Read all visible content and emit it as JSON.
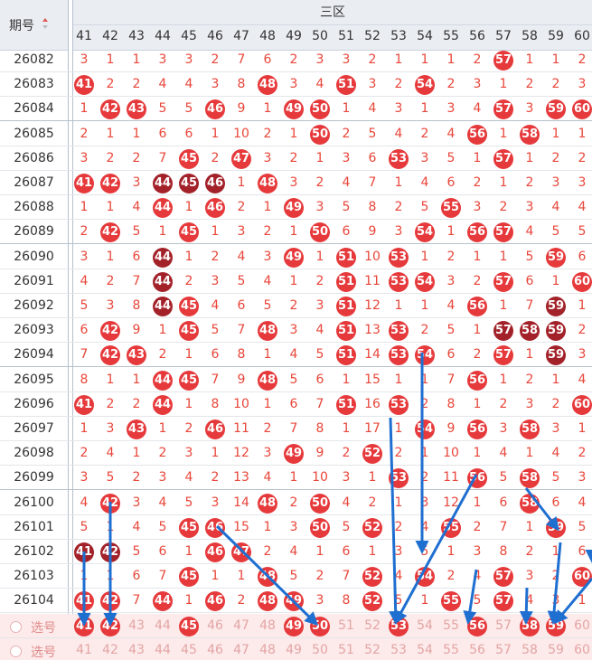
{
  "header": {
    "issue_label": "期号",
    "zone_label": "三区"
  },
  "columns": [
    "41",
    "42",
    "43",
    "44",
    "45",
    "46",
    "47",
    "48",
    "49",
    "50",
    "51",
    "52",
    "53",
    "54",
    "55",
    "56",
    "57",
    "58",
    "59",
    "60"
  ],
  "rows": [
    {
      "issue": "26082",
      "cells": [
        "3",
        "1",
        "1",
        "3",
        "3",
        "2",
        "7",
        "6",
        "2",
        "3",
        "3",
        "2",
        "1",
        "1",
        "1",
        "2",
        "57",
        "1",
        "1",
        "2"
      ],
      "balls": [
        16
      ],
      "dark": [],
      "group_end": false
    },
    {
      "issue": "26083",
      "cells": [
        "41",
        "2",
        "2",
        "4",
        "4",
        "3",
        "8",
        "48",
        "3",
        "4",
        "51",
        "3",
        "2",
        "54",
        "2",
        "3",
        "1",
        "2",
        "2",
        "3"
      ],
      "balls": [
        0,
        7,
        10,
        13
      ],
      "dark": [],
      "group_end": false
    },
    {
      "issue": "26084",
      "cells": [
        "1",
        "42",
        "43",
        "5",
        "5",
        "46",
        "9",
        "1",
        "49",
        "50",
        "1",
        "4",
        "3",
        "1",
        "3",
        "4",
        "57",
        "3",
        "59",
        "60"
      ],
      "balls": [
        1,
        2,
        5,
        8,
        9,
        16,
        18,
        19
      ],
      "dark": [],
      "group_end": true
    },
    {
      "issue": "26085",
      "cells": [
        "2",
        "1",
        "1",
        "6",
        "6",
        "1",
        "10",
        "2",
        "1",
        "50",
        "2",
        "5",
        "4",
        "2",
        "4",
        "56",
        "1",
        "58",
        "1",
        "1"
      ],
      "balls": [
        9,
        15,
        17
      ],
      "dark": [],
      "group_end": false
    },
    {
      "issue": "26086",
      "cells": [
        "3",
        "2",
        "2",
        "7",
        "45",
        "2",
        "47",
        "3",
        "2",
        "1",
        "3",
        "6",
        "53",
        "3",
        "5",
        "1",
        "57",
        "1",
        "2",
        "2"
      ],
      "balls": [
        4,
        6,
        12,
        16
      ],
      "dark": [],
      "group_end": false
    },
    {
      "issue": "26087",
      "cells": [
        "41",
        "42",
        "3",
        "44",
        "45",
        "46",
        "1",
        "48",
        "3",
        "2",
        "4",
        "7",
        "1",
        "4",
        "6",
        "2",
        "1",
        "2",
        "3",
        "3"
      ],
      "balls": [
        0,
        1,
        3,
        4,
        5,
        7
      ],
      "dark": [
        3,
        4,
        5
      ],
      "group_end": false
    },
    {
      "issue": "26088",
      "cells": [
        "1",
        "1",
        "4",
        "44",
        "1",
        "46",
        "2",
        "1",
        "49",
        "3",
        "5",
        "8",
        "2",
        "5",
        "55",
        "3",
        "2",
        "3",
        "4",
        "4"
      ],
      "balls": [
        3,
        5,
        8,
        14
      ],
      "dark": [],
      "group_end": false
    },
    {
      "issue": "26089",
      "cells": [
        "2",
        "42",
        "5",
        "1",
        "45",
        "1",
        "3",
        "2",
        "1",
        "50",
        "6",
        "9",
        "3",
        "54",
        "1",
        "56",
        "57",
        "4",
        "5",
        "5"
      ],
      "balls": [
        1,
        4,
        9,
        13,
        15,
        16
      ],
      "dark": [],
      "group_end": true
    },
    {
      "issue": "26090",
      "cells": [
        "3",
        "1",
        "6",
        "44",
        "1",
        "2",
        "4",
        "3",
        "49",
        "1",
        "51",
        "10",
        "53",
        "1",
        "2",
        "1",
        "1",
        "5",
        "59",
        "6"
      ],
      "balls": [
        3,
        8,
        10,
        12,
        18
      ],
      "dark": [
        3
      ],
      "group_end": false
    },
    {
      "issue": "26091",
      "cells": [
        "4",
        "2",
        "7",
        "44",
        "2",
        "3",
        "5",
        "4",
        "1",
        "2",
        "51",
        "11",
        "53",
        "54",
        "3",
        "2",
        "57",
        "6",
        "1",
        "60"
      ],
      "balls": [
        3,
        10,
        12,
        13,
        16,
        19
      ],
      "dark": [
        3
      ],
      "group_end": false
    },
    {
      "issue": "26092",
      "cells": [
        "5",
        "3",
        "8",
        "44",
        "45",
        "4",
        "6",
        "5",
        "2",
        "3",
        "51",
        "12",
        "1",
        "1",
        "4",
        "56",
        "1",
        "7",
        "59",
        "1"
      ],
      "balls": [
        3,
        4,
        10,
        15,
        18
      ],
      "dark": [
        3,
        18
      ],
      "group_end": false
    },
    {
      "issue": "26093",
      "cells": [
        "6",
        "42",
        "9",
        "1",
        "45",
        "5",
        "7",
        "48",
        "3",
        "4",
        "51",
        "13",
        "53",
        "2",
        "5",
        "1",
        "57",
        "58",
        "59",
        "2"
      ],
      "balls": [
        1,
        4,
        7,
        10,
        12,
        16,
        17,
        18
      ],
      "dark": [
        16,
        17,
        18
      ],
      "group_end": false
    },
    {
      "issue": "26094",
      "cells": [
        "7",
        "42",
        "43",
        "2",
        "1",
        "6",
        "8",
        "1",
        "4",
        "5",
        "51",
        "14",
        "53",
        "54",
        "6",
        "2",
        "57",
        "1",
        "59",
        "3"
      ],
      "balls": [
        1,
        2,
        10,
        12,
        13,
        16,
        18
      ],
      "dark": [
        18
      ],
      "group_end": true
    },
    {
      "issue": "26095",
      "cells": [
        "8",
        "1",
        "1",
        "44",
        "45",
        "7",
        "9",
        "48",
        "5",
        "6",
        "1",
        "15",
        "1",
        "1",
        "7",
        "56",
        "1",
        "2",
        "1",
        "4"
      ],
      "balls": [
        3,
        4,
        7,
        15
      ],
      "dark": [],
      "group_end": false
    },
    {
      "issue": "26096",
      "cells": [
        "41",
        "2",
        "2",
        "44",
        "1",
        "8",
        "10",
        "1",
        "6",
        "7",
        "51",
        "16",
        "53",
        "2",
        "8",
        "1",
        "2",
        "3",
        "2",
        "60"
      ],
      "balls": [
        0,
        3,
        10,
        12,
        19
      ],
      "dark": [],
      "group_end": false
    },
    {
      "issue": "26097",
      "cells": [
        "1",
        "3",
        "43",
        "1",
        "2",
        "46",
        "11",
        "2",
        "7",
        "8",
        "1",
        "17",
        "1",
        "54",
        "9",
        "56",
        "3",
        "58",
        "3",
        "1"
      ],
      "balls": [
        2,
        5,
        13,
        15,
        17
      ],
      "dark": [],
      "group_end": false
    },
    {
      "issue": "26098",
      "cells": [
        "2",
        "4",
        "1",
        "2",
        "3",
        "1",
        "12",
        "3",
        "49",
        "9",
        "2",
        "52",
        "2",
        "1",
        "10",
        "1",
        "4",
        "1",
        "4",
        "2"
      ],
      "balls": [
        8,
        11
      ],
      "dark": [],
      "group_end": false
    },
    {
      "issue": "26099",
      "cells": [
        "3",
        "5",
        "2",
        "3",
        "4",
        "2",
        "13",
        "4",
        "1",
        "10",
        "3",
        "1",
        "53",
        "2",
        "11",
        "56",
        "5",
        "58",
        "5",
        "3"
      ],
      "balls": [
        12,
        15,
        17
      ],
      "dark": [],
      "group_end": true
    },
    {
      "issue": "26100",
      "cells": [
        "4",
        "42",
        "3",
        "4",
        "5",
        "3",
        "14",
        "48",
        "2",
        "50",
        "4",
        "2",
        "1",
        "3",
        "12",
        "1",
        "6",
        "58",
        "6",
        "4"
      ],
      "balls": [
        1,
        7,
        9,
        17
      ],
      "dark": [],
      "group_end": false
    },
    {
      "issue": "26101",
      "cells": [
        "5",
        "1",
        "4",
        "5",
        "45",
        "46",
        "15",
        "1",
        "3",
        "50",
        "5",
        "52",
        "2",
        "4",
        "55",
        "2",
        "7",
        "1",
        "59",
        "5"
      ],
      "balls": [
        4,
        5,
        9,
        11,
        14,
        18
      ],
      "dark": [],
      "group_end": false
    },
    {
      "issue": "26102",
      "cells": [
        "41",
        "42",
        "5",
        "6",
        "1",
        "46",
        "47",
        "2",
        "4",
        "1",
        "6",
        "1",
        "3",
        "5",
        "1",
        "3",
        "8",
        "2",
        "1",
        "6"
      ],
      "balls": [
        0,
        1,
        5,
        6
      ],
      "dark": [
        0,
        1
      ],
      "group_end": false
    },
    {
      "issue": "26103",
      "cells": [
        "1",
        "1",
        "6",
        "7",
        "45",
        "1",
        "1",
        "48",
        "5",
        "2",
        "7",
        "52",
        "4",
        "54",
        "2",
        "4",
        "57",
        "3",
        "2",
        "60"
      ],
      "balls": [
        4,
        7,
        11,
        13,
        16,
        19
      ],
      "dark": [],
      "group_end": false
    },
    {
      "issue": "26104",
      "cells": [
        "41",
        "42",
        "7",
        "44",
        "1",
        "46",
        "2",
        "48",
        "49",
        "3",
        "8",
        "52",
        "5",
        "1",
        "55",
        "5",
        "57",
        "4",
        "3",
        "1"
      ],
      "balls": [
        0,
        1,
        3,
        5,
        7,
        8,
        11,
        14,
        16
      ],
      "dark": [],
      "group_end": false
    }
  ],
  "select_rows": [
    {
      "label": "选号",
      "cells": [
        "41",
        "42",
        "43",
        "44",
        "45",
        "46",
        "47",
        "48",
        "49",
        "50",
        "51",
        "52",
        "53",
        "54",
        "55",
        "56",
        "57",
        "58",
        "59",
        "60"
      ],
      "balls": [
        0,
        1,
        4,
        8,
        9,
        12,
        15,
        17,
        18
      ]
    },
    {
      "label": "选号",
      "cells": [
        "41",
        "42",
        "43",
        "44",
        "45",
        "46",
        "47",
        "48",
        "49",
        "50",
        "51",
        "52",
        "53",
        "54",
        "55",
        "56",
        "57",
        "58",
        "59",
        "60"
      ],
      "balls": []
    }
  ],
  "colors": {
    "ball": "#e6393b",
    "ball_dark": "#a3222a",
    "arrow": "#1f6fd1",
    "header_bg": "#eaeef3"
  }
}
